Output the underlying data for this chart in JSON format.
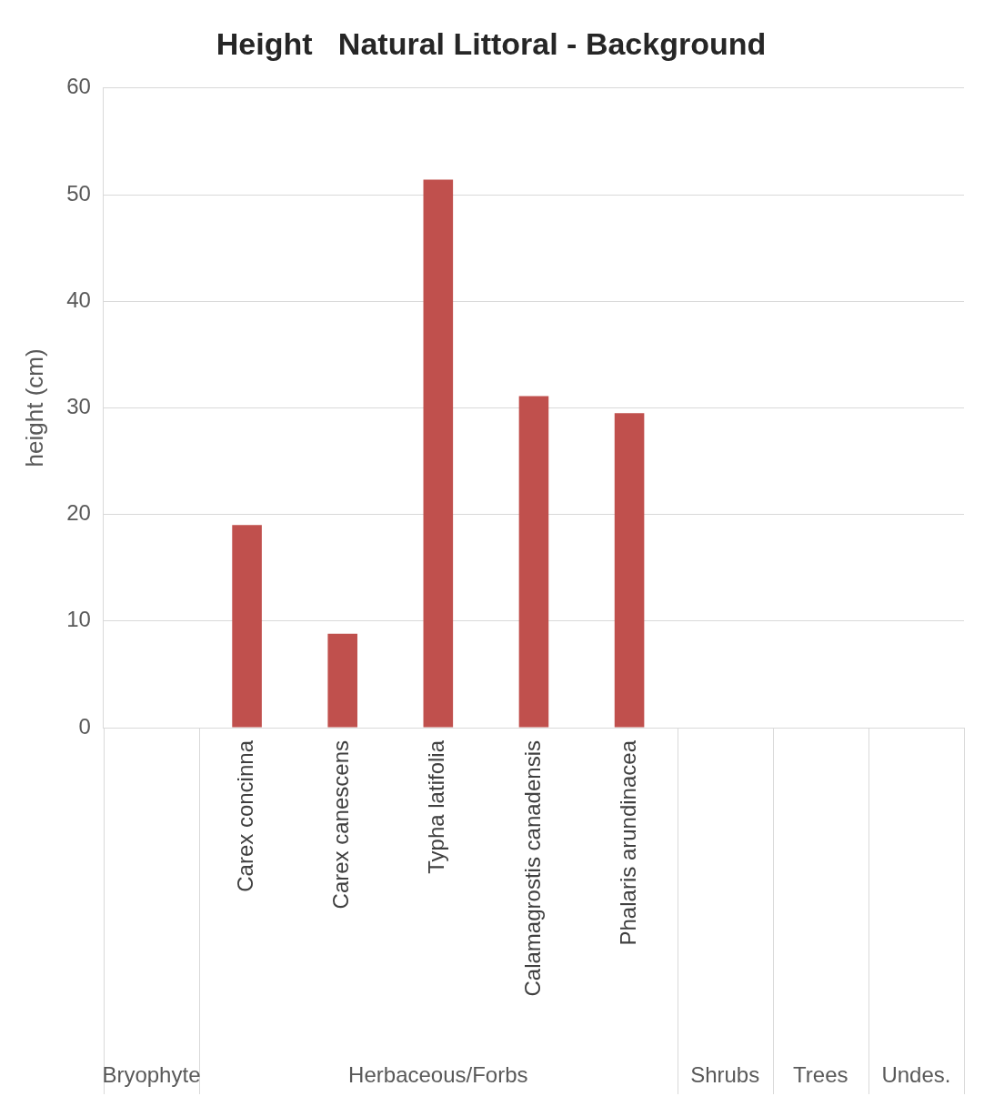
{
  "chart_data": {
    "type": "bar",
    "title": "Height   Natural Littoral - Background",
    "ylabel": "height (cm)",
    "categories": [
      null,
      "Carex concinna",
      "Carex canescens",
      "Typha latifolia",
      "Calamagrostis canadensis",
      "Phalaris arundinacea",
      null,
      null,
      null
    ],
    "values": [
      null,
      19,
      8.8,
      51.4,
      31.1,
      29.5,
      null,
      null,
      null
    ],
    "color": "#c0504d",
    "ylim": [
      0,
      60
    ],
    "yticks": [
      0,
      10,
      20,
      30,
      40,
      50,
      60
    ],
    "grid": "y",
    "legend": false,
    "annotations": [
      "Bryophyte",
      "Herbaceous/Forbs",
      "Shrubs",
      "Trees",
      "Undes."
    ]
  }
}
